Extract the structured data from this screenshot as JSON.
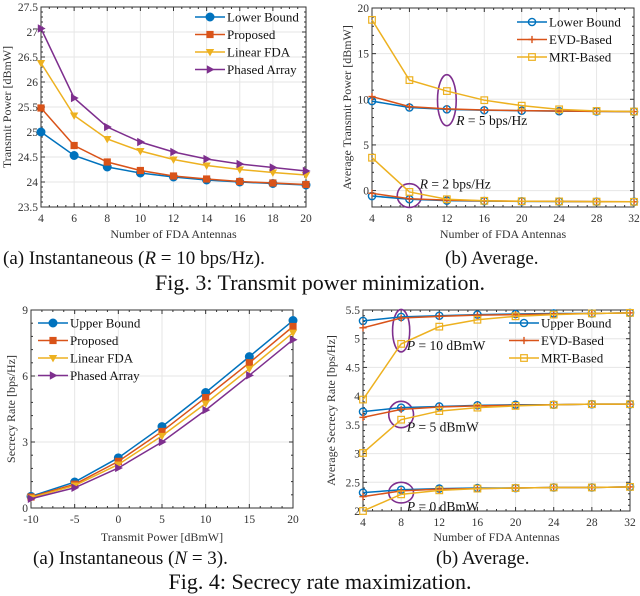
{
  "figures": [
    {
      "caption": "Fig. 3: Transmit power minimization.",
      "subcaptions": [
        {
          "prefix": "(a) Instantaneous (",
          "var": "R",
          "suffix": " = 10 bps/Hz)."
        },
        {
          "prefix": "(b) Average.",
          "var": "",
          "suffix": ""
        }
      ]
    },
    {
      "caption": "Fig. 4: Secrecy rate maximization.",
      "subcaptions": [
        {
          "prefix": "(a) Instantaneous (",
          "var": "N",
          "suffix": " = 3)."
        },
        {
          "prefix": "(b) Average.",
          "var": "",
          "suffix": ""
        }
      ]
    }
  ],
  "colors": {
    "blue": "#0072bd",
    "orange": "#d95319",
    "yellow": "#edb120",
    "purple": "#7e2f8e",
    "grid": "#e6e6e6"
  },
  "chart_data": [
    {
      "id": "fig3a",
      "type": "line",
      "title": "",
      "xlabel": "Number of FDA Antennas",
      "ylabel": "Transmit Power [dBmW]",
      "xlim": [
        4,
        20
      ],
      "ylim": [
        23.5,
        27.5
      ],
      "xticks": [
        4,
        6,
        8,
        10,
        12,
        14,
        16,
        18,
        20
      ],
      "yticks": [
        23.5,
        24,
        24.5,
        25,
        25.5,
        26,
        26.5,
        27,
        27.5
      ],
      "ytick_labels": [
        "23.5",
        "24",
        "24.5",
        "25",
        "25.5",
        "26",
        "26.5",
        "27",
        "27.5"
      ],
      "grid": true,
      "legend_position": "top-right",
      "x": [
        4,
        6,
        8,
        10,
        12,
        14,
        16,
        18,
        20
      ],
      "series": [
        {
          "name": "Lower Bound",
          "color": "#0072bd",
          "marker": "filled-circle",
          "values": [
            25.0,
            24.53,
            24.3,
            24.18,
            24.1,
            24.04,
            24.0,
            23.97,
            23.94
          ]
        },
        {
          "name": "Proposed",
          "color": "#d95319",
          "marker": "filled-square",
          "values": [
            25.48,
            24.73,
            24.4,
            24.23,
            24.12,
            24.06,
            24.01,
            23.98,
            23.95
          ]
        },
        {
          "name": "Linear FDA",
          "color": "#edb120",
          "marker": "filled-triangle-down",
          "values": [
            26.38,
            25.33,
            24.86,
            24.62,
            24.45,
            24.33,
            24.25,
            24.19,
            24.14
          ]
        },
        {
          "name": "Phased Array",
          "color": "#7e2f8e",
          "marker": "filled-triangle-right",
          "values": [
            27.07,
            25.68,
            25.1,
            24.8,
            24.6,
            24.46,
            24.36,
            24.29,
            24.22
          ]
        }
      ],
      "annotations": []
    },
    {
      "id": "fig3b",
      "type": "line",
      "title": "",
      "xlabel": "Number of FDA Antennas",
      "ylabel": "Average Transmit Power [dBmW]",
      "xlim": [
        4,
        32
      ],
      "ylim": [
        -1.8,
        20
      ],
      "xticks": [
        4,
        8,
        12,
        16,
        20,
        24,
        28,
        32
      ],
      "yticks": [
        0,
        5,
        10,
        15,
        20
      ],
      "ytick_labels": [
        "0",
        "5",
        "10",
        "15",
        "20"
      ],
      "grid": true,
      "legend_position": "top-right",
      "x": [
        4,
        8,
        12,
        16,
        20,
        24,
        28,
        32
      ],
      "series": [
        {
          "name": "Lower Bound",
          "group": "R = 5 bps/Hz",
          "color": "#0072bd",
          "marker": "open-circle",
          "legend": true,
          "values": [
            9.8,
            9.1,
            8.9,
            8.8,
            8.75,
            8.7,
            8.68,
            8.65
          ]
        },
        {
          "name": "EVD-Based",
          "group": "R = 5 bps/Hz",
          "color": "#d95319",
          "marker": "plus",
          "legend": true,
          "values": [
            10.3,
            9.2,
            8.95,
            8.82,
            8.76,
            8.71,
            8.68,
            8.65
          ]
        },
        {
          "name": "MRT-Based",
          "group": "R = 5 bps/Hz",
          "color": "#edb120",
          "marker": "open-square",
          "legend": true,
          "values": [
            18.7,
            12.1,
            10.9,
            9.9,
            9.3,
            8.9,
            8.72,
            8.66
          ]
        },
        {
          "name": "Lower Bound",
          "group": "R = 2 bps/Hz",
          "color": "#0072bd",
          "marker": "open-circle",
          "legend": false,
          "values": [
            -0.6,
            -0.95,
            -1.1,
            -1.15,
            -1.18,
            -1.2,
            -1.22,
            -1.23
          ]
        },
        {
          "name": "EVD-Based",
          "group": "R = 2 bps/Hz",
          "color": "#d95319",
          "marker": "plus",
          "legend": false,
          "values": [
            -0.3,
            -0.9,
            -1.05,
            -1.13,
            -1.17,
            -1.19,
            -1.21,
            -1.23
          ]
        },
        {
          "name": "MRT-Based",
          "group": "R = 2 bps/Hz",
          "color": "#edb120",
          "marker": "open-square",
          "legend": false,
          "values": [
            3.6,
            -0.15,
            -0.95,
            -1.12,
            -1.17,
            -1.19,
            -1.21,
            -1.23
          ]
        }
      ],
      "annotations": [
        {
          "text_var": "R",
          "text_rest": " = 5 bps/Hz",
          "x": 13,
          "y": 7.2
        },
        {
          "text_var": "R",
          "text_rest": " = 2 bps/Hz",
          "x": 9.1,
          "y": 0.2
        }
      ],
      "ellipses": [
        {
          "cx": 12,
          "cy": 9.9,
          "rx_data": 1.0,
          "ry_data": 2.8
        },
        {
          "cx": 8,
          "cy": -0.55,
          "rx_data": 1.3,
          "ry_data": 1.3
        }
      ]
    },
    {
      "id": "fig4a",
      "type": "line",
      "title": "",
      "xlabel": "Transmit Power [dBmW]",
      "ylabel": "Secrecy Rate [bps/Hz]",
      "xlim": [
        -10,
        20
      ],
      "ylim": [
        0,
        9
      ],
      "xticks": [
        -10,
        -5,
        0,
        5,
        10,
        15,
        20
      ],
      "yticks": [
        0,
        3,
        6,
        9
      ],
      "ytick_labels": [
        "0",
        "3",
        "6",
        "9"
      ],
      "grid": true,
      "legend_position": "top-left",
      "x": [
        -10,
        -5,
        0,
        5,
        10,
        15,
        20
      ],
      "series": [
        {
          "name": "Upper Bound",
          "color": "#0072bd",
          "marker": "filled-circle",
          "values": [
            0.53,
            1.18,
            2.28,
            3.7,
            5.25,
            6.88,
            8.52
          ]
        },
        {
          "name": "Proposed",
          "color": "#d95319",
          "marker": "filled-square",
          "values": [
            0.5,
            1.08,
            2.12,
            3.48,
            5.02,
            6.6,
            8.25
          ]
        },
        {
          "name": "Linear FDA",
          "color": "#edb120",
          "marker": "filled-triangle-down",
          "values": [
            0.47,
            1.02,
            1.98,
            3.28,
            4.75,
            6.33,
            7.97
          ]
        },
        {
          "name": "Phased Array",
          "color": "#7e2f8e",
          "marker": "filled-triangle-right",
          "values": [
            0.42,
            0.92,
            1.82,
            3.0,
            4.45,
            6.03,
            7.65
          ]
        }
      ],
      "annotations": []
    },
    {
      "id": "fig4b",
      "type": "line",
      "title": "",
      "xlabel": "Number of FDA Antennas",
      "ylabel": "Average Secrecy Rate [bps/Hz]",
      "xlim": [
        4,
        32
      ],
      "ylim": [
        2,
        5.5
      ],
      "xticks": [
        4,
        8,
        12,
        16,
        20,
        24,
        28,
        32
      ],
      "yticks": [
        2,
        2.5,
        3,
        3.5,
        4,
        4.5,
        5,
        5.5
      ],
      "ytick_labels": [
        "2",
        "2.5",
        "3",
        "3.5",
        "4",
        "4.5",
        "5",
        "5.5"
      ],
      "grid": true,
      "legend_position": "top-right",
      "x": [
        4,
        8,
        12,
        16,
        20,
        24,
        28,
        32
      ],
      "series": [
        {
          "name": "Upper Bound",
          "group": "P = 10 dBmW",
          "color": "#0072bd",
          "marker": "open-circle",
          "legend": true,
          "values": [
            5.31,
            5.38,
            5.4,
            5.42,
            5.43,
            5.44,
            5.44,
            5.45
          ]
        },
        {
          "name": "EVD-Based",
          "group": "P = 10 dBmW",
          "color": "#d95319",
          "marker": "plus",
          "legend": true,
          "values": [
            5.19,
            5.36,
            5.39,
            5.41,
            5.42,
            5.43,
            5.44,
            5.45
          ]
        },
        {
          "name": "MRT-Based",
          "group": "P = 10 dBmW",
          "color": "#edb120",
          "marker": "open-square",
          "legend": true,
          "values": [
            3.94,
            4.91,
            5.21,
            5.33,
            5.39,
            5.42,
            5.44,
            5.45
          ]
        },
        {
          "name": "Upper Bound",
          "group": "P = 5 dBmW",
          "color": "#0072bd",
          "marker": "open-circle",
          "legend": false,
          "values": [
            3.73,
            3.8,
            3.82,
            3.84,
            3.85,
            3.85,
            3.86,
            3.86
          ]
        },
        {
          "name": "EVD-Based",
          "group": "P = 5 dBmW",
          "color": "#d95319",
          "marker": "plus",
          "legend": false,
          "values": [
            3.63,
            3.77,
            3.81,
            3.83,
            3.84,
            3.85,
            3.86,
            3.86
          ]
        },
        {
          "name": "MRT-Based",
          "group": "P = 5 dBmW",
          "color": "#edb120",
          "marker": "open-square",
          "legend": false,
          "values": [
            3.01,
            3.59,
            3.74,
            3.8,
            3.83,
            3.85,
            3.86,
            3.86
          ]
        },
        {
          "name": "Upper Bound",
          "group": "P = 0 dBmW",
          "color": "#0072bd",
          "marker": "open-circle",
          "legend": false,
          "values": [
            2.32,
            2.37,
            2.39,
            2.4,
            2.4,
            2.41,
            2.41,
            2.42
          ]
        },
        {
          "name": "EVD-Based",
          "group": "P = 0 dBmW",
          "color": "#d95319",
          "marker": "plus",
          "legend": false,
          "values": [
            2.25,
            2.35,
            2.38,
            2.39,
            2.4,
            2.41,
            2.41,
            2.42
          ]
        },
        {
          "name": "MRT-Based",
          "group": "P = 0 dBmW",
          "color": "#edb120",
          "marker": "open-square",
          "legend": false,
          "values": [
            2.0,
            2.29,
            2.36,
            2.39,
            2.4,
            2.41,
            2.41,
            2.42
          ]
        }
      ],
      "annotations": [
        {
          "text_var": "P",
          "text_rest": " = 10 dBmW",
          "x": 8.6,
          "y": 4.8
        },
        {
          "text_var": "P",
          "text_rest": " = 5 dBmW",
          "x": 8.6,
          "y": 3.38
        },
        {
          "text_var": "P",
          "text_rest": " = 0 dBmW",
          "x": 8.6,
          "y": 2.0
        }
      ],
      "ellipses": [
        {
          "cx": 8,
          "cy": 5.14,
          "rx_data": 0.9,
          "ry_data": 0.37
        },
        {
          "cx": 8,
          "cy": 3.68,
          "rx_data": 1.3,
          "ry_data": 0.23
        },
        {
          "cx": 8,
          "cy": 2.32,
          "rx_data": 1.3,
          "ry_data": 0.18
        }
      ]
    }
  ]
}
